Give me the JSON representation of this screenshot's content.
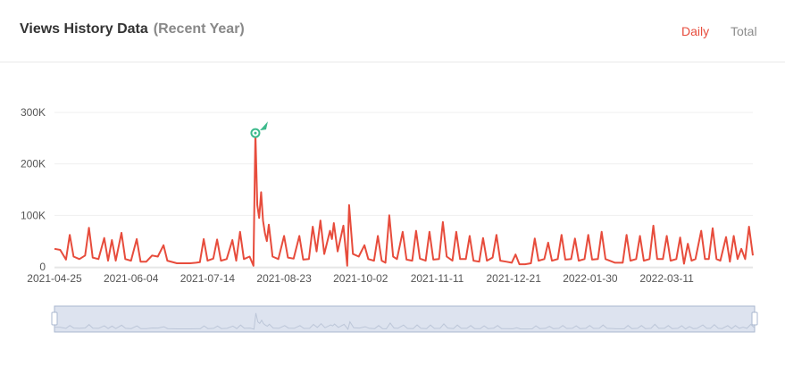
{
  "header": {
    "title": "Views History Data",
    "subtitle": "(Recent Year)",
    "tabs": [
      {
        "label": "Daily",
        "active": true
      },
      {
        "label": "Total",
        "active": false
      }
    ]
  },
  "colors": {
    "series": "#e74c3c",
    "marker": "#3dba8c",
    "slider_fill": "#dde3ef",
    "slider_border": "#a9b7cf",
    "active_tab": "#e74c3c",
    "inactive_tab": "#8c8c8c"
  },
  "chart_data": {
    "type": "line",
    "title": "",
    "xlabel": "",
    "ylabel": "",
    "x_range": [
      "2021-04-25",
      "2022-04-25"
    ],
    "x_tick_labels": [
      "2021-04-25",
      "2021-06-04",
      "2021-07-14",
      "2021-08-23",
      "2021-10-02",
      "2021-11-11",
      "2021-12-21",
      "2022-01-30",
      "2022-03-11"
    ],
    "y_tick_labels": [
      "0",
      "100K",
      "200K",
      "300K"
    ],
    "y_ticks": [
      0,
      100000,
      200000,
      300000
    ],
    "ylim": [
      0,
      300000
    ],
    "grid": true,
    "max_marker": {
      "x": "2021-08-08",
      "y": 260000
    },
    "series": [
      {
        "points": [
          [
            "2021-04-25",
            35000
          ],
          [
            "2021-04-28",
            33000
          ],
          [
            "2021-05-01",
            14000
          ],
          [
            "2021-05-03",
            62000
          ],
          [
            "2021-05-05",
            20000
          ],
          [
            "2021-05-08",
            15000
          ],
          [
            "2021-05-11",
            22000
          ],
          [
            "2021-05-13",
            76000
          ],
          [
            "2021-05-15",
            18000
          ],
          [
            "2021-05-18",
            15000
          ],
          [
            "2021-05-21",
            56000
          ],
          [
            "2021-05-23",
            12000
          ],
          [
            "2021-05-25",
            52000
          ],
          [
            "2021-05-27",
            12000
          ],
          [
            "2021-05-30",
            66000
          ],
          [
            "2021-06-01",
            15000
          ],
          [
            "2021-06-04",
            12000
          ],
          [
            "2021-06-07",
            54000
          ],
          [
            "2021-06-09",
            10000
          ],
          [
            "2021-06-12",
            10000
          ],
          [
            "2021-06-15",
            22000
          ],
          [
            "2021-06-18",
            20000
          ],
          [
            "2021-06-21",
            42000
          ],
          [
            "2021-06-23",
            12000
          ],
          [
            "2021-06-28",
            7000
          ],
          [
            "2021-07-05",
            7000
          ],
          [
            "2021-07-08",
            8000
          ],
          [
            "2021-07-10",
            9000
          ],
          [
            "2021-07-12",
            54000
          ],
          [
            "2021-07-14",
            12000
          ],
          [
            "2021-07-17",
            16000
          ],
          [
            "2021-07-19",
            53000
          ],
          [
            "2021-07-21",
            12000
          ],
          [
            "2021-07-24",
            15000
          ],
          [
            "2021-07-27",
            52000
          ],
          [
            "2021-07-29",
            12000
          ],
          [
            "2021-07-31",
            68000
          ],
          [
            "2021-08-02",
            15000
          ],
          [
            "2021-08-05",
            20000
          ],
          [
            "2021-08-07",
            2000
          ],
          [
            "2021-08-08",
            260000
          ],
          [
            "2021-08-09",
            120000
          ],
          [
            "2021-08-10",
            95000
          ],
          [
            "2021-08-11",
            145000
          ],
          [
            "2021-08-12",
            90000
          ],
          [
            "2021-08-13",
            65000
          ],
          [
            "2021-08-14",
            50000
          ],
          [
            "2021-08-15",
            82000
          ],
          [
            "2021-08-17",
            20000
          ],
          [
            "2021-08-20",
            15000
          ],
          [
            "2021-08-23",
            60000
          ],
          [
            "2021-08-25",
            18000
          ],
          [
            "2021-08-28",
            16000
          ],
          [
            "2021-08-31",
            60000
          ],
          [
            "2021-09-02",
            14000
          ],
          [
            "2021-09-05",
            15000
          ],
          [
            "2021-09-07",
            78000
          ],
          [
            "2021-09-09",
            30000
          ],
          [
            "2021-09-11",
            90000
          ],
          [
            "2021-09-13",
            25000
          ],
          [
            "2021-09-16",
            70000
          ],
          [
            "2021-09-17",
            54000
          ],
          [
            "2021-09-18",
            85000
          ],
          [
            "2021-09-20",
            30000
          ],
          [
            "2021-09-23",
            80000
          ],
          [
            "2021-09-25",
            2000
          ],
          [
            "2021-09-26",
            120000
          ],
          [
            "2021-09-28",
            25000
          ],
          [
            "2021-10-01",
            20000
          ],
          [
            "2021-10-04",
            42000
          ],
          [
            "2021-10-06",
            15000
          ],
          [
            "2021-10-09",
            12000
          ],
          [
            "2021-10-11",
            60000
          ],
          [
            "2021-10-13",
            12000
          ],
          [
            "2021-10-15",
            8000
          ],
          [
            "2021-10-17",
            100000
          ],
          [
            "2021-10-19",
            20000
          ],
          [
            "2021-10-21",
            15000
          ],
          [
            "2021-10-24",
            68000
          ],
          [
            "2021-10-26",
            14000
          ],
          [
            "2021-10-29",
            12000
          ],
          [
            "2021-10-31",
            70000
          ],
          [
            "2021-11-02",
            16000
          ],
          [
            "2021-11-05",
            12000
          ],
          [
            "2021-11-07",
            68000
          ],
          [
            "2021-11-09",
            14000
          ],
          [
            "2021-11-12",
            15000
          ],
          [
            "2021-11-14",
            87000
          ],
          [
            "2021-11-16",
            20000
          ],
          [
            "2021-11-19",
            12000
          ],
          [
            "2021-11-21",
            68000
          ],
          [
            "2021-11-23",
            15000
          ],
          [
            "2021-11-26",
            15000
          ],
          [
            "2021-11-28",
            60000
          ],
          [
            "2021-11-30",
            12000
          ],
          [
            "2021-12-03",
            10000
          ],
          [
            "2021-12-05",
            56000
          ],
          [
            "2021-12-07",
            12000
          ],
          [
            "2021-12-10",
            18000
          ],
          [
            "2021-12-12",
            62000
          ],
          [
            "2021-12-14",
            12000
          ],
          [
            "2021-12-17",
            10000
          ],
          [
            "2021-12-20",
            8000
          ],
          [
            "2021-12-22",
            24000
          ],
          [
            "2021-12-24",
            5000
          ],
          [
            "2021-12-27",
            5000
          ],
          [
            "2021-12-30",
            7000
          ],
          [
            "2022-01-01",
            55000
          ],
          [
            "2022-01-03",
            12000
          ],
          [
            "2022-01-06",
            15000
          ],
          [
            "2022-01-08",
            47000
          ],
          [
            "2022-01-10",
            12000
          ],
          [
            "2022-01-13",
            15000
          ],
          [
            "2022-01-15",
            62000
          ],
          [
            "2022-01-17",
            14000
          ],
          [
            "2022-01-20",
            15000
          ],
          [
            "2022-01-22",
            55000
          ],
          [
            "2022-01-24",
            12000
          ],
          [
            "2022-01-27",
            15000
          ],
          [
            "2022-01-29",
            62000
          ],
          [
            "2022-01-31",
            14000
          ],
          [
            "2022-02-03",
            15000
          ],
          [
            "2022-02-05",
            68000
          ],
          [
            "2022-02-07",
            15000
          ],
          [
            "2022-02-12",
            8000
          ],
          [
            "2022-02-16",
            8000
          ],
          [
            "2022-02-18",
            62000
          ],
          [
            "2022-02-20",
            12000
          ],
          [
            "2022-02-23",
            15000
          ],
          [
            "2022-02-25",
            60000
          ],
          [
            "2022-02-27",
            12000
          ],
          [
            "2022-03-02",
            15000
          ],
          [
            "2022-03-04",
            80000
          ],
          [
            "2022-03-06",
            15000
          ],
          [
            "2022-03-09",
            15000
          ],
          [
            "2022-03-11",
            60000
          ],
          [
            "2022-03-13",
            12000
          ],
          [
            "2022-03-16",
            15000
          ],
          [
            "2022-03-18",
            57000
          ],
          [
            "2022-03-20",
            6000
          ],
          [
            "2022-03-22",
            45000
          ],
          [
            "2022-03-24",
            12000
          ],
          [
            "2022-03-26",
            15000
          ],
          [
            "2022-03-29",
            70000
          ],
          [
            "2022-03-31",
            15000
          ],
          [
            "2022-04-02",
            15000
          ],
          [
            "2022-04-04",
            75000
          ],
          [
            "2022-04-06",
            15000
          ],
          [
            "2022-04-08",
            12000
          ],
          [
            "2022-04-11",
            58000
          ],
          [
            "2022-04-13",
            10000
          ],
          [
            "2022-04-15",
            60000
          ],
          [
            "2022-04-17",
            15000
          ],
          [
            "2022-04-19",
            35000
          ],
          [
            "2022-04-21",
            15000
          ],
          [
            "2022-04-23",
            78000
          ],
          [
            "2022-04-25",
            22000
          ]
        ]
      }
    ]
  }
}
